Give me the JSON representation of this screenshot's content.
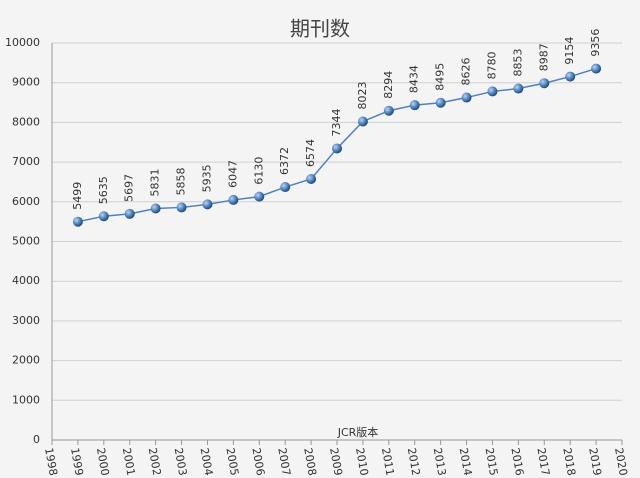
{
  "chart_data": {
    "type": "line",
    "title": "期刊数",
    "x_label": "JCR版本",
    "x": [
      1999,
      2000,
      2001,
      2002,
      2003,
      2004,
      2005,
      2006,
      2007,
      2008,
      2009,
      2010,
      2011,
      2012,
      2013,
      2014,
      2015,
      2016,
      2017,
      2018,
      2019
    ],
    "values": [
      5499,
      5635,
      5697,
      5831,
      5858,
      5935,
      6047,
      6130,
      6372,
      6574,
      7344,
      8023,
      8294,
      8434,
      8495,
      8626,
      8780,
      8853,
      8987,
      9154,
      9356
    ],
    "color": "#4f81bd",
    "xlim": [
      1998,
      2020
    ],
    "xticks": [
      1998,
      1999,
      2000,
      2001,
      2002,
      2003,
      2004,
      2005,
      2006,
      2007,
      2008,
      2009,
      2010,
      2011,
      2012,
      2013,
      2014,
      2015,
      2016,
      2017,
      2018,
      2019,
      2020
    ],
    "ylim": [
      0,
      10000
    ],
    "yticks": [
      0,
      1000,
      2000,
      3000,
      4000,
      5000,
      6000,
      7000,
      8000,
      9000,
      10000
    ],
    "grid": true
  }
}
